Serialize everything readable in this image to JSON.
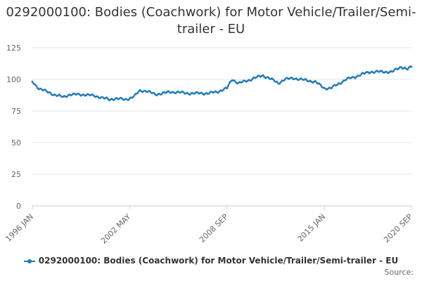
{
  "chart_data": {
    "type": "line",
    "title": "0292000100: Bodies (Coachwork) for Motor Vehicle/Trailer/Semi-trailer - EU",
    "xlabel": "",
    "ylabel": "",
    "ylim": [
      0,
      125
    ],
    "yticks": [
      "0",
      "25",
      "50",
      "75",
      "100",
      "125"
    ],
    "xticks": [
      "1996 JAN",
      "2002 MAY",
      "2008 SEP",
      "2015 JAN",
      "2020 SEP"
    ],
    "grid": true,
    "legend_position": "bottom",
    "series": [
      {
        "name": "0292000100: Bodies (Coachwork) for Motor Vehicle/Trailer/Semi-trailer - EU",
        "color": "#1f7ab9",
        "x": [
          "1996-01",
          "1996-06",
          "1997-01",
          "1997-06",
          "1998-01",
          "1998-06",
          "1999-01",
          "1999-06",
          "2000-01",
          "2000-06",
          "2001-01",
          "2001-06",
          "2002-01",
          "2002-05",
          "2002-09",
          "2003-01",
          "2003-06",
          "2004-01",
          "2004-06",
          "2005-01",
          "2005-06",
          "2006-01",
          "2006-06",
          "2007-01",
          "2007-06",
          "2008-01",
          "2008-06",
          "2008-09",
          "2009-01",
          "2009-06",
          "2010-01",
          "2010-06",
          "2011-01",
          "2011-06",
          "2012-01",
          "2012-06",
          "2013-01",
          "2013-06",
          "2014-01",
          "2014-06",
          "2015-01",
          "2015-06",
          "2016-01",
          "2016-06",
          "2017-01",
          "2017-06",
          "2018-01",
          "2018-06",
          "2019-01",
          "2019-06",
          "2020-01",
          "2020-06",
          "2020-09"
        ],
        "values": [
          98,
          93,
          90,
          88,
          86,
          88,
          88,
          88,
          87,
          86,
          84,
          85,
          84,
          85,
          87,
          91,
          91,
          88,
          89,
          90,
          90,
          89,
          89,
          89,
          89,
          90,
          92,
          93,
          100,
          97,
          99,
          101,
          103,
          101,
          97,
          100,
          101,
          100,
          99,
          98,
          93,
          93,
          97,
          100,
          102,
          104,
          106,
          106,
          106,
          106,
          110,
          108,
          110
        ]
      }
    ]
  },
  "source_label": "Source:"
}
